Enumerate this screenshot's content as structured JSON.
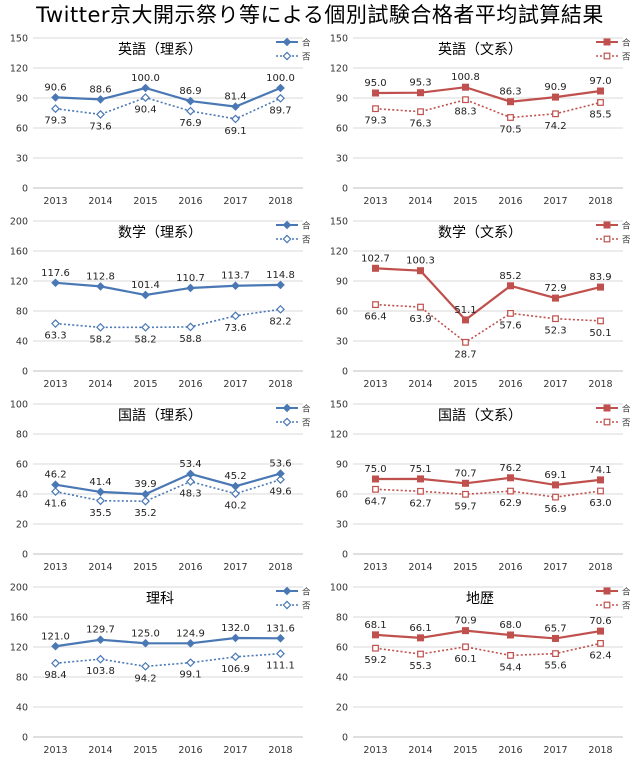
{
  "page": {
    "title": "Twitter京大開示祭り等による個別試験合格者平均試算結果"
  },
  "chart_data": [
    {
      "type": "line",
      "title": "英語（理系）",
      "x": [
        "2013",
        "2014",
        "2015",
        "2016",
        "2017",
        "2018"
      ],
      "ylim": [
        0,
        150
      ],
      "yticks": [
        0,
        30,
        60,
        90,
        120,
        150
      ],
      "series": [
        {
          "name": "合",
          "values": [
            90.6,
            88.6,
            100.0,
            86.9,
            81.4,
            100.0
          ]
        },
        {
          "name": "否",
          "values": [
            79.3,
            73.6,
            90.4,
            76.9,
            69.1,
            89.7
          ]
        }
      ],
      "labels": {
        "pass": [
          "90.6",
          "88.6",
          "100.0",
          "86.9",
          "81.4",
          "100.0"
        ],
        "fail": [
          "79.3",
          "73.6",
          "90.4",
          "76.9",
          "69.1",
          "89.7"
        ]
      },
      "palette": {
        "pass": "#4a78b5",
        "fail": "#4a78b5"
      },
      "marker": "diamond",
      "legend": "top-right",
      "grid": true
    },
    {
      "type": "line",
      "title": "英語（文系）",
      "x": [
        "2013",
        "2014",
        "2015",
        "2016",
        "2017",
        "2018"
      ],
      "ylim": [
        0,
        150
      ],
      "yticks": [
        0,
        30,
        60,
        90,
        120,
        150
      ],
      "series": [
        {
          "name": "合",
          "values": [
            95.0,
            95.3,
            100.8,
            86.3,
            90.9,
            97.0
          ]
        },
        {
          "name": "否",
          "values": [
            79.3,
            76.3,
            88.3,
            70.5,
            74.2,
            85.5
          ]
        }
      ],
      "labels": {
        "pass": [
          "95.0",
          "95.3",
          "100.8",
          "86.3",
          "90.9",
          "97.0"
        ],
        "fail": [
          "79.3",
          "76.3",
          "88.3",
          "70.5",
          "74.2",
          "85.5"
        ]
      },
      "palette": {
        "pass": "#c0504d",
        "fail": "#c0504d"
      },
      "marker": "square",
      "legend": "top-right",
      "grid": true
    },
    {
      "type": "line",
      "title": "数学（理系）",
      "x": [
        "2013",
        "2014",
        "2015",
        "2016",
        "2017",
        "2018"
      ],
      "ylim": [
        0,
        200
      ],
      "yticks": [
        0,
        40,
        80,
        120,
        160,
        200
      ],
      "series": [
        {
          "name": "合",
          "values": [
            117.6,
            112.8,
            101.4,
            110.7,
            113.7,
            114.8
          ]
        },
        {
          "name": "否",
          "values": [
            63.3,
            58.2,
            58.2,
            58.8,
            73.6,
            82.2
          ]
        }
      ],
      "labels": {
        "pass": [
          "117.6",
          "112.8",
          "101.4",
          "110.7",
          "113.7",
          "114.8"
        ],
        "fail": [
          "63.3",
          "58.2",
          "58.2",
          "58.8",
          "73.6",
          "82.2"
        ]
      },
      "palette": {
        "pass": "#4a78b5",
        "fail": "#4a78b5"
      },
      "marker": "diamond",
      "legend": "top-right",
      "grid": true
    },
    {
      "type": "line",
      "title": "数学（文系）",
      "x": [
        "2013",
        "2014",
        "2015",
        "2016",
        "2017",
        "2018"
      ],
      "ylim": [
        0,
        150
      ],
      "yticks": [
        0,
        30,
        60,
        90,
        120,
        150
      ],
      "series": [
        {
          "name": "合",
          "values": [
            102.7,
            100.3,
            51.1,
            85.2,
            72.9,
            83.9
          ]
        },
        {
          "name": "否",
          "values": [
            66.4,
            63.9,
            28.7,
            57.6,
            52.3,
            50.1
          ]
        }
      ],
      "labels": {
        "pass": [
          "102.7",
          "100.3",
          "51.1",
          "85.2",
          "72.9",
          "83.9"
        ],
        "fail": [
          "66.4",
          "63.9",
          "28.7",
          "57.6",
          "52.3",
          "50.1"
        ]
      },
      "palette": {
        "pass": "#c0504d",
        "fail": "#c0504d"
      },
      "marker": "square",
      "legend": "top-right",
      "grid": true
    },
    {
      "type": "line",
      "title": "国語（理系）",
      "x": [
        "2013",
        "2014",
        "2015",
        "2016",
        "2017",
        "2018"
      ],
      "ylim": [
        0,
        100
      ],
      "yticks": [
        0,
        20,
        40,
        60,
        80,
        100
      ],
      "series": [
        {
          "name": "合",
          "values": [
            46.2,
            41.4,
            39.9,
            53.4,
            45.2,
            53.6
          ]
        },
        {
          "name": "否",
          "values": [
            41.6,
            35.5,
            35.2,
            48.3,
            40.2,
            49.6
          ]
        }
      ],
      "labels": {
        "pass": [
          "46.2",
          "41.4",
          "39.9",
          "53.4",
          "45.2",
          "53.6"
        ],
        "fail": [
          "41.6",
          "35.5",
          "35.2",
          "48.3",
          "40.2",
          "49.6"
        ]
      },
      "palette": {
        "pass": "#4a78b5",
        "fail": "#4a78b5"
      },
      "marker": "diamond",
      "legend": "top-right",
      "grid": true
    },
    {
      "type": "line",
      "title": "国語（文系）",
      "x": [
        "2013",
        "2014",
        "2015",
        "2016",
        "2017",
        "2018"
      ],
      "ylim": [
        0,
        150
      ],
      "yticks": [
        0,
        30,
        60,
        90,
        120,
        150
      ],
      "series": [
        {
          "name": "合",
          "values": [
            75.0,
            75.1,
            70.7,
            76.2,
            69.1,
            74.1
          ]
        },
        {
          "name": "否",
          "values": [
            64.7,
            62.7,
            59.7,
            62.9,
            56.9,
            63.0
          ]
        }
      ],
      "labels": {
        "pass": [
          "75.0",
          "75.1",
          "70.7",
          "76.2",
          "69.1",
          "74.1"
        ],
        "fail": [
          "64.7",
          "62.7",
          "59.7",
          "62.9",
          "56.9",
          "63.0"
        ]
      },
      "palette": {
        "pass": "#c0504d",
        "fail": "#c0504d"
      },
      "marker": "square",
      "legend": "top-right",
      "grid": true
    },
    {
      "type": "line",
      "title": "理科",
      "x": [
        "2013",
        "2014",
        "2015",
        "2016",
        "2017",
        "2018"
      ],
      "ylim": [
        0,
        200
      ],
      "yticks": [
        0,
        40,
        80,
        120,
        160,
        200
      ],
      "series": [
        {
          "name": "合",
          "values": [
            121.0,
            129.7,
            125.0,
            124.9,
            132.0,
            131.6
          ]
        },
        {
          "name": "否",
          "values": [
            98.4,
            103.8,
            94.2,
            99.1,
            106.9,
            111.1
          ]
        }
      ],
      "labels": {
        "pass": [
          "121.0",
          "129.7",
          "125.0",
          "124.9",
          "132.0",
          "131.6"
        ],
        "fail": [
          "98.4",
          "103.8",
          "94.2",
          "99.1",
          "106.9",
          "111.1"
        ]
      },
      "palette": {
        "pass": "#4a78b5",
        "fail": "#4a78b5"
      },
      "marker": "diamond",
      "legend": "top-right",
      "grid": true
    },
    {
      "type": "line",
      "title": "地歴",
      "x": [
        "2013",
        "2014",
        "2015",
        "2016",
        "2017",
        "2018"
      ],
      "ylim": [
        0,
        100
      ],
      "yticks": [
        0,
        20,
        40,
        60,
        80,
        100
      ],
      "series": [
        {
          "name": "合",
          "values": [
            68.1,
            66.1,
            70.9,
            68.0,
            65.7,
            70.6
          ]
        },
        {
          "name": "否",
          "values": [
            59.2,
            55.3,
            60.1,
            54.4,
            55.6,
            62.4
          ]
        }
      ],
      "labels": {
        "pass": [
          "68.1",
          "66.1",
          "70.9",
          "68.0",
          "65.7",
          "70.6"
        ],
        "fail": [
          "59.2",
          "55.3",
          "60.1",
          "54.4",
          "55.6",
          "62.4"
        ]
      },
      "palette": {
        "pass": "#c0504d",
        "fail": "#c0504d"
      },
      "marker": "square",
      "legend": "top-right",
      "grid": true
    }
  ]
}
